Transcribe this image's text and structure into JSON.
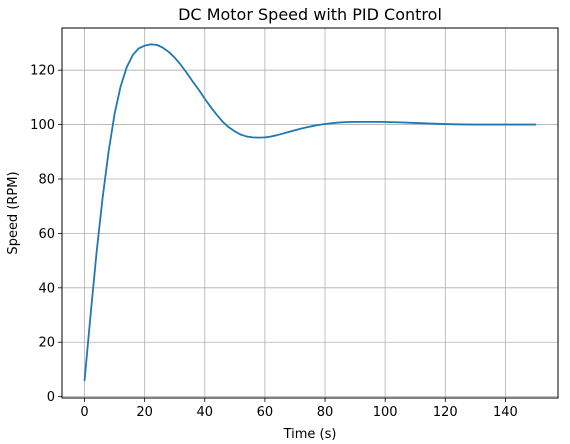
{
  "chart_data": {
    "type": "line",
    "title": "DC Motor Speed with PID Control",
    "xlabel": "Time (s)",
    "ylabel": "Speed (RPM)",
    "xlim": [
      -7.5,
      157.5
    ],
    "ylim": [
      -0.5,
      135.5
    ],
    "xticks": [
      0,
      20,
      40,
      60,
      80,
      100,
      120,
      140
    ],
    "yticks": [
      0,
      20,
      40,
      60,
      80,
      100,
      120
    ],
    "grid": true,
    "line_color": "#1f77b4",
    "series": [
      {
        "x": [
          0,
          2,
          4,
          6,
          8,
          10,
          12,
          14,
          16,
          18,
          20,
          22,
          24,
          26,
          28,
          30,
          32,
          34,
          36,
          38,
          40,
          42,
          44,
          46,
          48,
          50,
          52,
          54,
          56,
          58,
          60,
          62,
          64,
          66,
          68,
          70,
          72,
          74,
          76,
          78,
          80,
          82,
          84,
          86,
          88,
          90,
          92,
          94,
          96,
          98,
          100,
          105,
          110,
          115,
          120,
          125,
          130,
          135,
          140,
          145,
          150
        ],
        "y": [
          6,
          30,
          53,
          73,
          90,
          104,
          114,
          121,
          125.5,
          128,
          129,
          129.5,
          129.3,
          128.3,
          126.7,
          124.6,
          122,
          119,
          115.8,
          112.8,
          109.5,
          106.4,
          103.6,
          101,
          99,
          97.5,
          96.3,
          95.6,
          95.3,
          95.2,
          95.3,
          95.6,
          96.1,
          96.7,
          97.3,
          97.9,
          98.5,
          99.0,
          99.5,
          99.9,
          100.2,
          100.5,
          100.7,
          100.85,
          100.95,
          101.0,
          101.0,
          101.0,
          101.0,
          101.0,
          100.95,
          100.8,
          100.6,
          100.4,
          100.2,
          100.05,
          100.0,
          100.0,
          100.0,
          100.0,
          100.0
        ]
      }
    ]
  }
}
